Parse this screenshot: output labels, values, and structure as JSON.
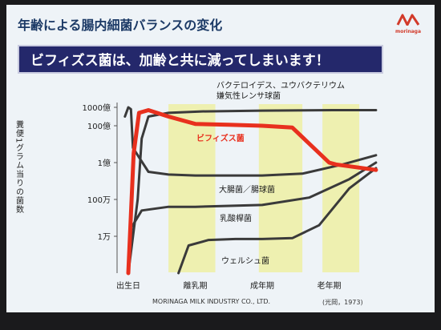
{
  "slide": {
    "title": "年齢による腸内細菌バランスの変化",
    "banner": "ビフィズス菌は、加齢と共に減ってしまいます！",
    "logo_text": "morinaga",
    "footer_company": "MORINAGA MILK INDUSTRY CO., LTD.",
    "citation": "(光岡，1973)"
  },
  "colors": {
    "background": "#eef3f7",
    "banner": "#24286b",
    "period_band": "#eef0b0",
    "bifidus": "#e8301e",
    "other_series": "#3a3a3a",
    "logo": "#d23a2a"
  },
  "chart_data": {
    "type": "line",
    "ylabel": "糞便1グラム当りの菌数",
    "y_ticks": [
      "1000億",
      "100億",
      "1億",
      "100万",
      "1万"
    ],
    "y_tick_log10": [
      11,
      10,
      8,
      6,
      4
    ],
    "x_ticks": [
      "出生日",
      "離乳期",
      "成年期",
      "老年期"
    ],
    "x_tick_stage": [
      0,
      1,
      2,
      3
    ],
    "ylim_log10": [
      2,
      11.4
    ],
    "series": [
      {
        "name": "バクテロイデス、ユウバクテリウム嫌気性レンサ球菌",
        "highlight": false,
        "points": [
          [
            0.0,
            2
          ],
          [
            0.14,
            6
          ],
          [
            0.2,
            9.3
          ],
          [
            0.3,
            10.5
          ],
          [
            0.6,
            10.7
          ],
          [
            1.1,
            10.78
          ],
          [
            2.0,
            10.82
          ],
          [
            3.05,
            10.85
          ],
          [
            3.7,
            10.85
          ]
        ]
      },
      {
        "name": "ビフィズス菌",
        "highlight": true,
        "points": [
          [
            0.0,
            2
          ],
          [
            0.08,
            8.5
          ],
          [
            0.16,
            10.7
          ],
          [
            0.3,
            10.85
          ],
          [
            0.6,
            10.5
          ],
          [
            1.0,
            10.1
          ],
          [
            1.5,
            10.05
          ],
          [
            2.0,
            10.0
          ],
          [
            2.45,
            9.9
          ],
          [
            3.0,
            8.0
          ],
          [
            3.1,
            7.9
          ],
          [
            3.7,
            7.6
          ]
        ]
      },
      {
        "name": "大腸菌／腸球菌",
        "highlight": false,
        "points": [
          [
            -0.05,
            10.5
          ],
          [
            0.0,
            11.0
          ],
          [
            0.04,
            10.9
          ],
          [
            0.07,
            8.8
          ],
          [
            0.3,
            7.5
          ],
          [
            0.6,
            7.35
          ],
          [
            1.0,
            7.3
          ],
          [
            2.0,
            7.3
          ],
          [
            2.6,
            7.4
          ],
          [
            3.2,
            7.9
          ],
          [
            3.7,
            8.4
          ]
        ]
      },
      {
        "name": "乳酸桿菌",
        "highlight": false,
        "points": [
          [
            0.0,
            2
          ],
          [
            0.05,
            4.5
          ],
          [
            0.2,
            5.4
          ],
          [
            0.6,
            5.6
          ],
          [
            1.0,
            5.6
          ],
          [
            2.0,
            5.7
          ],
          [
            2.7,
            6.1
          ],
          [
            3.3,
            7.1
          ],
          [
            3.7,
            8.0
          ]
        ]
      },
      {
        "name": "ウェルシュ菌",
        "highlight": false,
        "points": [
          [
            0.75,
            2
          ],
          [
            0.9,
            3.5
          ],
          [
            1.2,
            3.8
          ],
          [
            1.6,
            3.85
          ],
          [
            2.0,
            3.85
          ],
          [
            2.45,
            3.9
          ],
          [
            2.85,
            4.6
          ],
          [
            3.3,
            6.6
          ],
          [
            3.7,
            7.7
          ]
        ]
      }
    ],
    "grid": false,
    "legend": "inline labels"
  }
}
